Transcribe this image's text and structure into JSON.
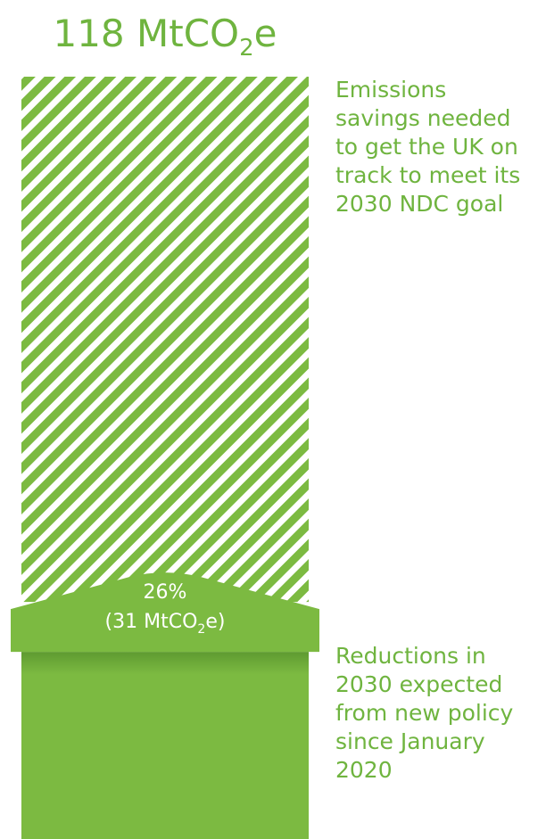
{
  "chart_data": {
    "type": "bar",
    "title": {
      "value": "118",
      "unit_main": "MtCO",
      "unit_sub": "2",
      "unit_tail": "e"
    },
    "total": 118,
    "unit": "MtCO2e",
    "series": [
      {
        "name": "Emissions savings needed to get the UK on track to meet its 2030 NDC goal",
        "value": 118,
        "pattern": "diagonal-stripes"
      },
      {
        "name": "Reductions in 2030 expected from new policy since January 2020",
        "value": 31,
        "pattern": "solid"
      }
    ],
    "share_label": {
      "percent": "26%",
      "open": "(31 MtCO",
      "sub": "2",
      "close": "e)"
    },
    "annotations": {
      "top": [
        "Emissions",
        "savings needed",
        "to get the UK on",
        "track to meet its",
        "2030 NDC goal"
      ],
      "bottom": [
        "Reductions in",
        "2030 expected",
        "from new policy",
        "since January",
        "2020"
      ]
    },
    "colors": {
      "accent": "#6fb43f",
      "band": "#7cba41",
      "bar": "#7cba41",
      "bar_shadow": "#5e9a31"
    }
  }
}
